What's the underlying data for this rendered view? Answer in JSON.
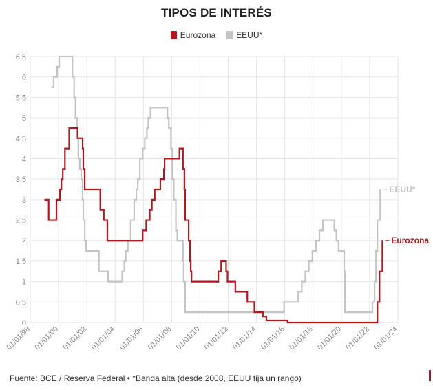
{
  "title": "TIPOS DE INTERÉS",
  "footer": {
    "prefix": "Fuente: ",
    "source_link": "BCE / Reserva Federal",
    "note": " • *Banda alta (desde 2008, EEUU fija un rango)"
  },
  "colors": {
    "eurozona": "#b0171f",
    "eeuu": "#c4c4c4",
    "grid": "#e6e6e6",
    "axis_text": "#888888"
  },
  "chart_data": {
    "type": "line",
    "title": "TIPOS DE INTERÉS",
    "xlabel": "",
    "ylabel": "",
    "xlim": [
      1998.0,
      2024.0
    ],
    "ylim": [
      0,
      6.5
    ],
    "grid": true,
    "legend_position": "top-center",
    "y_ticks": [
      "0",
      "0,5",
      "1",
      "1,5",
      "2",
      "2,5",
      "3",
      "3,5",
      "4",
      "4,5",
      "5",
      "5,5",
      "6",
      "6,5"
    ],
    "x_ticks": [
      "01/01/98",
      "01/01/00",
      "01/01/02",
      "01/01/04",
      "01/01/06",
      "01/01/08",
      "01/01/10",
      "01/01/12",
      "01/01/14",
      "01/01/16",
      "01/01/18",
      "01/01/20",
      "01/01/22",
      "01/01/24"
    ],
    "series": [
      {
        "name": "Eurozona",
        "end_label": "Eurozona",
        "color": "#b0171f",
        "points": [
          [
            1999.0,
            3.0
          ],
          [
            1999.3,
            2.5
          ],
          [
            1999.85,
            3.0
          ],
          [
            2000.1,
            3.25
          ],
          [
            2000.2,
            3.5
          ],
          [
            2000.3,
            3.75
          ],
          [
            2000.45,
            4.25
          ],
          [
            2000.75,
            4.75
          ],
          [
            2001.35,
            4.5
          ],
          [
            2001.7,
            4.25
          ],
          [
            2001.75,
            3.75
          ],
          [
            2001.85,
            3.25
          ],
          [
            2002.95,
            2.75
          ],
          [
            2003.2,
            2.5
          ],
          [
            2003.45,
            2.0
          ],
          [
            2005.95,
            2.25
          ],
          [
            2006.2,
            2.5
          ],
          [
            2006.45,
            2.75
          ],
          [
            2006.6,
            3.0
          ],
          [
            2006.8,
            3.25
          ],
          [
            2007.2,
            3.5
          ],
          [
            2007.45,
            3.75
          ],
          [
            2007.5,
            4.0
          ],
          [
            2008.55,
            4.25
          ],
          [
            2008.8,
            3.75
          ],
          [
            2008.9,
            3.25
          ],
          [
            2008.95,
            2.5
          ],
          [
            2009.2,
            2.0
          ],
          [
            2009.3,
            1.5
          ],
          [
            2009.35,
            1.25
          ],
          [
            2009.4,
            1.0
          ],
          [
            2011.3,
            1.25
          ],
          [
            2011.5,
            1.5
          ],
          [
            2011.85,
            1.25
          ],
          [
            2011.95,
            1.0
          ],
          [
            2012.5,
            0.75
          ],
          [
            2013.35,
            0.5
          ],
          [
            2013.85,
            0.25
          ],
          [
            2014.45,
            0.15
          ],
          [
            2014.7,
            0.05
          ],
          [
            2016.2,
            0.0
          ],
          [
            2022.55,
            0.5
          ],
          [
            2022.7,
            1.25
          ],
          [
            2022.9,
            2.0
          ]
        ]
      },
      {
        "name": "EEUU*",
        "end_label": "EEUU*",
        "color": "#c4c4c4",
        "points": [
          [
            1999.5,
            5.75
          ],
          [
            1999.65,
            6.0
          ],
          [
            1999.9,
            6.25
          ],
          [
            2000.05,
            6.5
          ],
          [
            2000.6,
            6.5
          ],
          [
            2000.98,
            6.0
          ],
          [
            2001.1,
            5.5
          ],
          [
            2001.2,
            5.0
          ],
          [
            2001.3,
            4.5
          ],
          [
            2001.4,
            4.0
          ],
          [
            2001.5,
            3.75
          ],
          [
            2001.6,
            3.5
          ],
          [
            2001.7,
            3.0
          ],
          [
            2001.75,
            2.5
          ],
          [
            2001.85,
            2.0
          ],
          [
            2001.95,
            1.75
          ],
          [
            2002.85,
            1.25
          ],
          [
            2003.5,
            1.0
          ],
          [
            2004.5,
            1.25
          ],
          [
            2004.65,
            1.5
          ],
          [
            2004.75,
            1.75
          ],
          [
            2004.9,
            2.0
          ],
          [
            2005.1,
            2.5
          ],
          [
            2005.35,
            3.0
          ],
          [
            2005.5,
            3.25
          ],
          [
            2005.6,
            3.5
          ],
          [
            2005.75,
            4.0
          ],
          [
            2005.95,
            4.25
          ],
          [
            2006.1,
            4.5
          ],
          [
            2006.25,
            4.75
          ],
          [
            2006.35,
            5.0
          ],
          [
            2006.5,
            5.25
          ],
          [
            2007.7,
            5.0
          ],
          [
            2007.8,
            4.75
          ],
          [
            2007.95,
            4.25
          ],
          [
            2008.05,
            3.5
          ],
          [
            2008.15,
            3.0
          ],
          [
            2008.3,
            2.25
          ],
          [
            2008.4,
            2.0
          ],
          [
            2008.8,
            1.5
          ],
          [
            2008.85,
            1.0
          ],
          [
            2008.95,
            0.25
          ],
          [
            2015.95,
            0.5
          ],
          [
            2016.95,
            0.75
          ],
          [
            2017.2,
            1.0
          ],
          [
            2017.45,
            1.25
          ],
          [
            2017.7,
            1.5
          ],
          [
            2017.95,
            1.75
          ],
          [
            2018.2,
            2.0
          ],
          [
            2018.45,
            2.25
          ],
          [
            2018.7,
            2.5
          ],
          [
            2019.5,
            2.25
          ],
          [
            2019.65,
            2.0
          ],
          [
            2019.8,
            1.75
          ],
          [
            2020.2,
            1.25
          ],
          [
            2020.25,
            0.25
          ],
          [
            2022.2,
            0.5
          ],
          [
            2022.35,
            1.0
          ],
          [
            2022.45,
            1.75
          ],
          [
            2022.55,
            2.5
          ],
          [
            2022.75,
            3.25
          ]
        ]
      }
    ]
  }
}
